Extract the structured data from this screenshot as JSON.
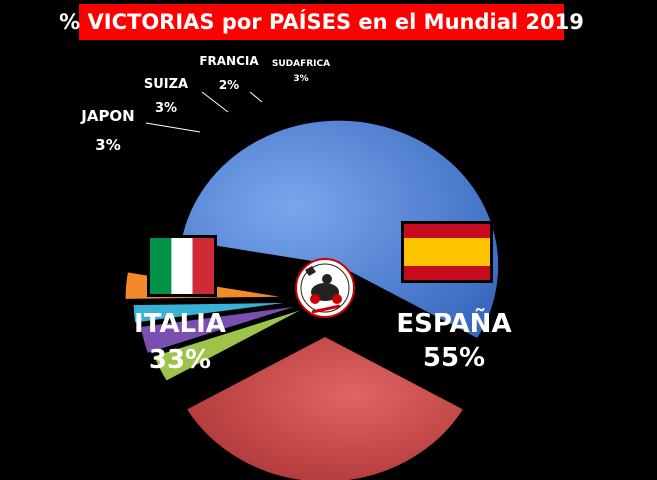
{
  "title": "% VICTORIAS por PAÍSES en el Mundial 2019",
  "colors": {
    "title_bg": "#ff0000",
    "background": "#000000",
    "label_text": "#ffffff"
  },
  "logo_icon": "moto-rider-logo-icon",
  "chart_data": {
    "type": "pie",
    "style": "exploded-3d",
    "title": "% VICTORIAS por PAÍSES en el Mundial 2019",
    "unit": "%",
    "slices": [
      {
        "name": "ESPAÑA",
        "value": 55,
        "label": "55%",
        "color": "#4d7fd1",
        "flag": "spain-flag-icon"
      },
      {
        "name": "ITALIA",
        "value": 33,
        "label": "33%",
        "color": "#c94040",
        "flag": "italy-flag-icon"
      },
      {
        "name": "JAPON",
        "value": 3,
        "label": "3%",
        "color": "#9dc34a"
      },
      {
        "name": "SUIZA",
        "value": 3,
        "label": "3%",
        "color": "#7a4fb2"
      },
      {
        "name": "FRANCIA",
        "value": 2,
        "label": "2%",
        "color": "#38b3d6"
      },
      {
        "name": "SUDAFRICA",
        "value": 3,
        "label": "3%",
        "color": "#f38a2a"
      }
    ]
  }
}
